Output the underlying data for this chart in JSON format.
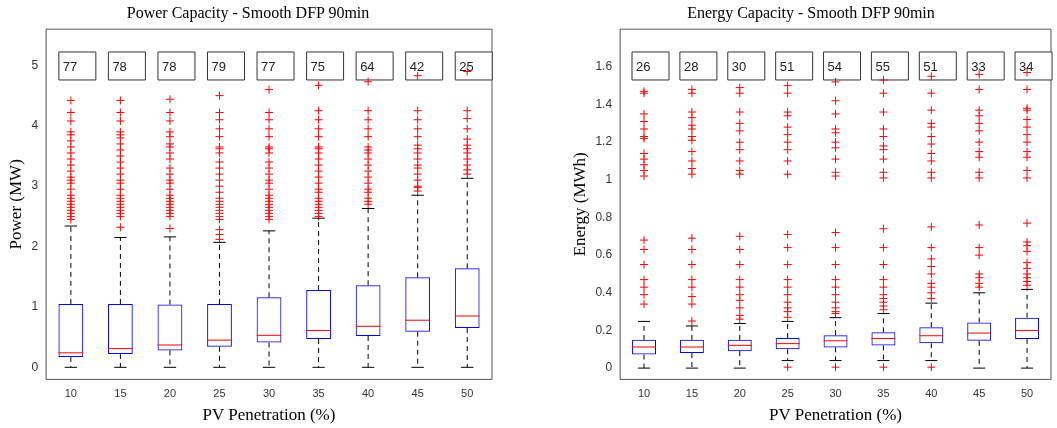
{
  "chart_data": [
    {
      "type": "box",
      "title": "Power Capacity - Smooth DFP 90min",
      "xlabel": "PV Penetration (%)",
      "ylabel": "Power (MW)",
      "categories": [
        "10",
        "15",
        "20",
        "25",
        "30",
        "35",
        "40",
        "45",
        "50"
      ],
      "ylim": [
        -0.2,
        5.6
      ],
      "yticks": [
        0,
        1,
        2,
        3,
        4,
        5
      ],
      "grid": false,
      "legend": false,
      "series": [
        {
          "color": "#0000ff",
          "boxes": [
            {
              "low": 0,
              "q1": 0.17,
              "median": 0.24,
              "q3": 1.05,
              "high": 2.34,
              "outliers": [
                2.45,
                2.5,
                2.55,
                2.6,
                2.65,
                2.7,
                2.75,
                2.8,
                2.85,
                2.95,
                3.05,
                3.1,
                3.15,
                3.25,
                3.35,
                3.45,
                3.55,
                3.65,
                3.75,
                3.85,
                3.9,
                4.08,
                4.22,
                4.42
              ]
            },
            {
              "low": 0,
              "q1": 0.22,
              "median": 0.31,
              "q3": 1.05,
              "high": 2.15,
              "outliers": [
                2.32,
                2.5,
                2.55,
                2.6,
                2.65,
                2.7,
                2.75,
                2.8,
                2.85,
                2.95,
                3.05,
                3.1,
                3.2,
                3.3,
                3.4,
                3.5,
                3.6,
                3.7,
                3.8,
                3.85,
                3.9,
                4.08,
                4.22,
                4.42
              ]
            },
            {
              "low": 0,
              "q1": 0.28,
              "median": 0.37,
              "q3": 1.04,
              "high": 2.16,
              "outliers": [
                2.3,
                2.5,
                2.55,
                2.6,
                2.65,
                2.7,
                2.75,
                2.8,
                2.85,
                2.95,
                3.05,
                3.1,
                3.2,
                3.3,
                3.45,
                3.55,
                3.65,
                3.7,
                3.82,
                3.9,
                4.08,
                4.22,
                4.44
              ]
            },
            {
              "low": 0,
              "q1": 0.34,
              "median": 0.45,
              "q3": 1.05,
              "high": 2.07,
              "outliers": [
                2.12,
                2.2,
                2.28,
                2.45,
                2.5,
                2.55,
                2.6,
                2.65,
                2.7,
                2.75,
                2.8,
                2.9,
                3.0,
                3.1,
                3.2,
                3.3,
                3.4,
                3.55,
                3.62,
                3.65,
                3.82,
                3.95,
                4.1,
                4.22,
                4.5
              ]
            },
            {
              "low": 0,
              "q1": 0.41,
              "median": 0.53,
              "q3": 1.16,
              "high": 2.26,
              "outliers": [
                2.45,
                2.5,
                2.55,
                2.6,
                2.65,
                2.7,
                2.75,
                2.8,
                2.85,
                2.95,
                3.05,
                3.1,
                3.2,
                3.3,
                3.4,
                3.55,
                3.62,
                3.65,
                3.82,
                3.95,
                4.1,
                4.22,
                4.6
              ]
            },
            {
              "low": 0,
              "q1": 0.47,
              "median": 0.61,
              "q3": 1.28,
              "high": 2.47,
              "outliers": [
                2.5,
                2.55,
                2.6,
                2.65,
                2.7,
                2.75,
                2.8,
                2.9,
                2.95,
                3.05,
                3.15,
                3.25,
                3.35,
                3.45,
                3.55,
                3.62,
                3.65,
                3.82,
                3.95,
                4.1,
                4.25,
                4.67
              ]
            },
            {
              "low": 0,
              "q1": 0.52,
              "median": 0.68,
              "q3": 1.36,
              "high": 2.63,
              "outliers": [
                2.7,
                2.75,
                2.8,
                2.9,
                2.95,
                3.05,
                3.15,
                3.25,
                3.35,
                3.45,
                3.55,
                3.6,
                3.65,
                3.82,
                3.95,
                4.1,
                4.25,
                4.73
              ]
            },
            {
              "low": 0,
              "q1": 0.59,
              "median": 0.78,
              "q3": 1.49,
              "high": 2.85,
              "outliers": [
                2.92,
                2.98,
                3.0,
                3.1,
                3.2,
                3.3,
                3.35,
                3.45,
                3.55,
                3.62,
                3.68,
                3.82,
                3.95,
                4.1,
                4.25,
                4.83
              ]
            },
            {
              "low": 0,
              "q1": 0.65,
              "median": 0.85,
              "q3": 1.64,
              "high": 3.13,
              "outliers": [
                3.2,
                3.27,
                3.35,
                3.45,
                3.55,
                3.62,
                3.68,
                3.78,
                3.95,
                4.12,
                4.25,
                4.9
              ]
            }
          ]
        }
      ],
      "annotations": [
        "77",
        "78",
        "78",
        "79",
        "77",
        "75",
        "64",
        "42",
        "25"
      ]
    },
    {
      "type": "box",
      "title": "Energy Capacity - Smooth DFP 90min",
      "xlabel": "PV Penetration (%)",
      "ylabel": "Energy (MWh)",
      "categories": [
        "10",
        "15",
        "20",
        "25",
        "30",
        "35",
        "40",
        "45",
        "50"
      ],
      "ylim": [
        -0.06,
        1.8
      ],
      "yticks": [
        0,
        0.2,
        0.4,
        0.6,
        0.8,
        1,
        1.2,
        1.4,
        1.6
      ],
      "grid": false,
      "legend": false,
      "series": [
        {
          "color": "#0000ff",
          "boxes": [
            {
              "low": 0,
              "q1": 0.072,
              "median": 0.112,
              "q3": 0.15,
              "high": 0.248,
              "outliers": [
                0.34,
                0.39,
                0.43,
                0.47,
                0.55,
                0.63,
                0.68,
                1.02,
                1.05,
                1.08,
                1.11,
                1.14,
                1.22,
                1.23,
                1.27,
                1.31,
                1.35,
                1.46,
                1.47
              ]
            },
            {
              "low": 0,
              "q1": 0.08,
              "median": 0.112,
              "q3": 0.15,
              "high": 0.224,
              "outliers": [
                0.25,
                0.34,
                0.38,
                0.43,
                0.47,
                0.55,
                0.63,
                0.69,
                1.03,
                1.06,
                1.1,
                1.15,
                1.21,
                1.23,
                1.27,
                1.29,
                1.33,
                1.36,
                1.46,
                1.48
              ]
            },
            {
              "low": 0,
              "q1": 0.09,
              "median": 0.121,
              "q3": 0.15,
              "high": 0.237,
              "outliers": [
                0.26,
                0.28,
                0.32,
                0.36,
                0.39,
                0.43,
                0.47,
                0.55,
                0.63,
                0.7,
                1.03,
                1.05,
                1.1,
                1.16,
                1.2,
                1.26,
                1.3,
                1.36,
                1.46,
                1.49
              ]
            },
            {
              "low": 0.04,
              "q1": 0.1,
              "median": 0.13,
              "q3": 0.16,
              "high": 0.248,
              "outliers": [
                0.005,
                0.27,
                0.3,
                0.32,
                0.35,
                0.39,
                0.43,
                0.47,
                0.55,
                0.64,
                0.71,
                1.03,
                1.1,
                1.16,
                1.2,
                1.24,
                1.28,
                1.34,
                1.36,
                1.46,
                1.5
              ]
            },
            {
              "low": 0.04,
              "q1": 0.11,
              "median": 0.145,
              "q3": 0.175,
              "high": 0.268,
              "outliers": [
                0.005,
                0.29,
                0.3,
                0.32,
                0.35,
                0.39,
                0.43,
                0.47,
                0.55,
                0.64,
                0.72,
                1.02,
                1.04,
                1.11,
                1.17,
                1.2,
                1.25,
                1.27,
                1.35,
                1.42,
                1.52
              ]
            },
            {
              "low": 0.04,
              "q1": 0.12,
              "median": 0.157,
              "q3": 0.19,
              "high": 0.29,
              "outliers": [
                0.005,
                0.31,
                0.33,
                0.35,
                0.37,
                0.39,
                0.43,
                0.47,
                0.55,
                0.64,
                0.74,
                1.01,
                1.04,
                1.11,
                1.16,
                1.18,
                1.23,
                1.27,
                1.36,
                1.46,
                1.53
              ]
            },
            {
              "low": 0.04,
              "q1": 0.132,
              "median": 0.172,
              "q3": 0.217,
              "high": 0.345,
              "outliers": [
                0.005,
                0.37,
                0.4,
                0.43,
                0.45,
                0.5,
                0.54,
                0.58,
                0.64,
                0.75,
                1.01,
                1.04,
                1.1,
                1.14,
                1.19,
                1.23,
                1.28,
                1.3,
                1.37,
                1.46,
                1.55
              ]
            },
            {
              "low": 0,
              "q1": 0.145,
              "median": 0.186,
              "q3": 0.242,
              "high": 0.4,
              "outliers": [
                0.43,
                0.45,
                0.48,
                0.5,
                0.6,
                0.64,
                0.76,
                1.01,
                1.04,
                1.12,
                1.15,
                1.2,
                1.26,
                1.3,
                1.34,
                1.37,
                1.48,
                1.56
              ]
            },
            {
              "low": 0,
              "q1": 0.155,
              "median": 0.2,
              "q3": 0.268,
              "high": 0.418,
              "outliers": [
                0.44,
                0.46,
                0.48,
                0.5,
                0.53,
                0.56,
                0.62,
                0.65,
                0.67,
                0.77,
                1.01,
                1.05,
                1.12,
                1.15,
                1.2,
                1.24,
                1.28,
                1.32,
                1.37,
                1.38,
                1.48,
                1.57
              ]
            }
          ]
        }
      ],
      "annotations": [
        "26",
        "28",
        "30",
        "51",
        "54",
        "55",
        "51",
        "33",
        "34"
      ]
    }
  ]
}
